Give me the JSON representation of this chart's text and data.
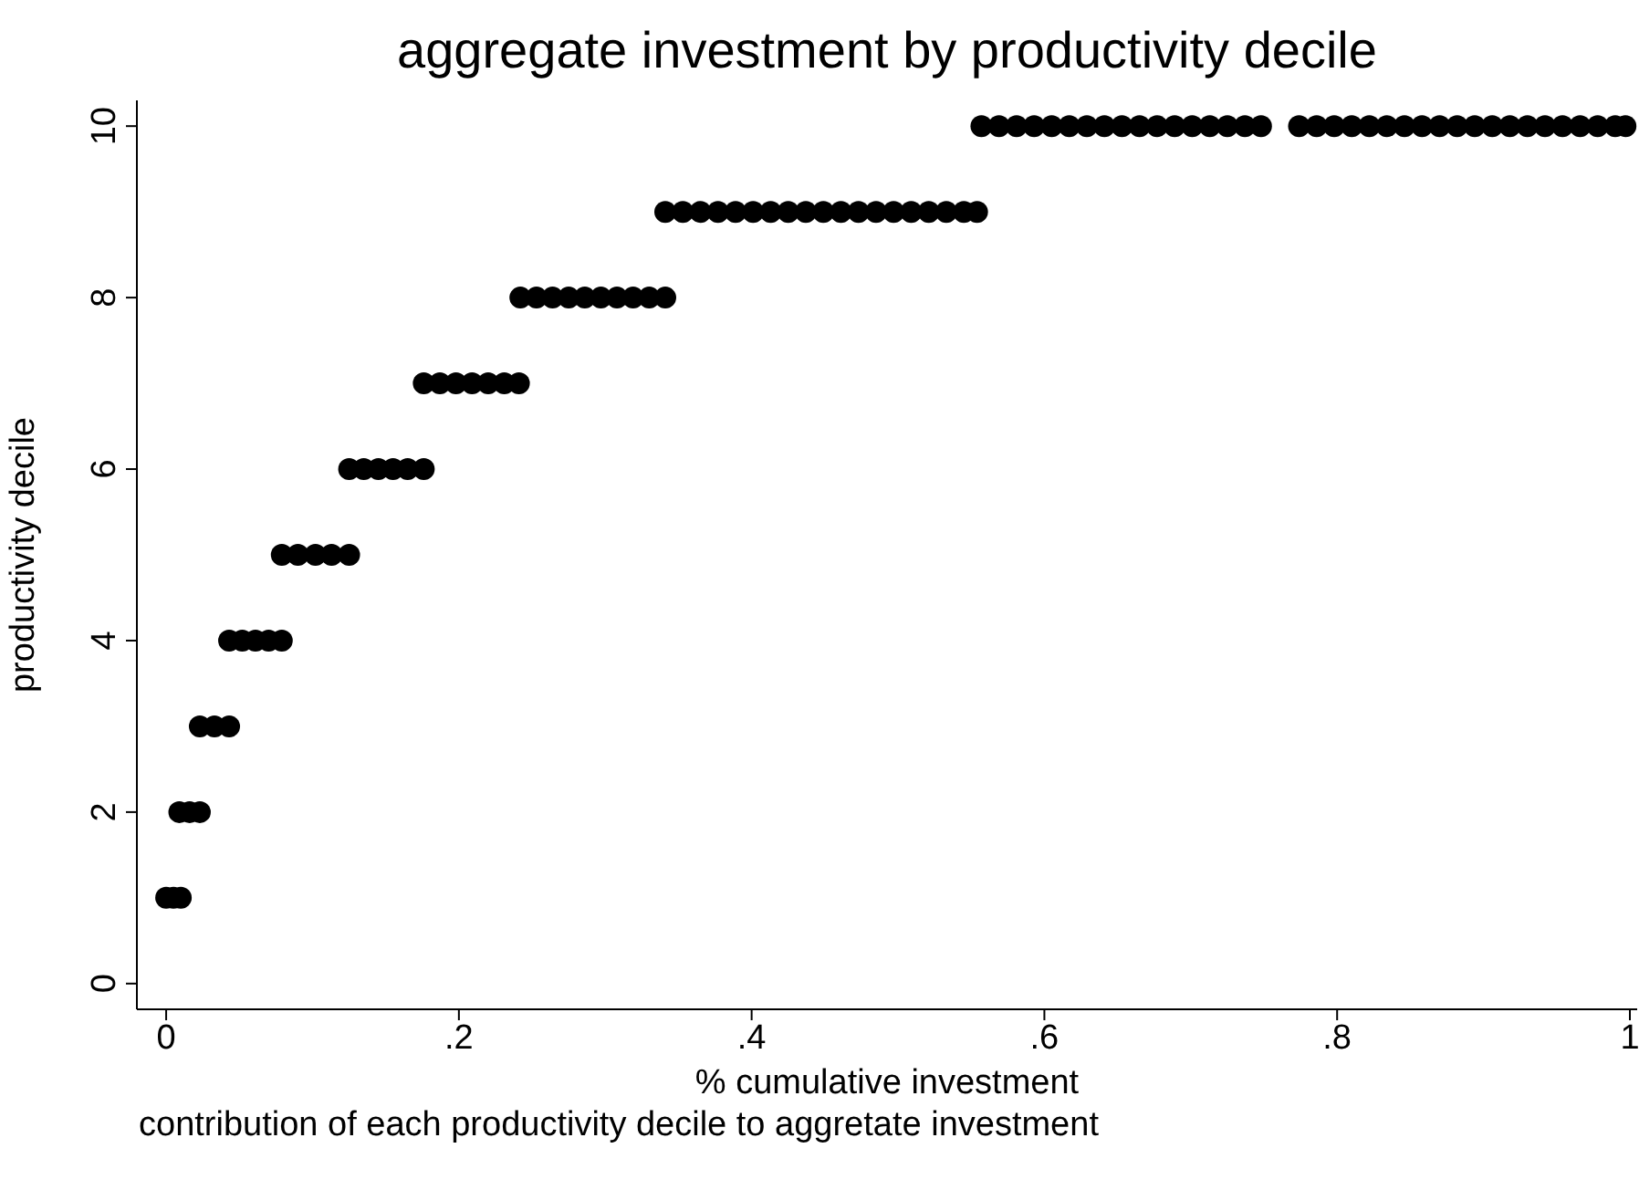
{
  "chart_data": {
    "type": "scatter",
    "title": "aggregate investment by productivity decile",
    "xlabel": "% cumulative investment",
    "ylabel": "productivity decile",
    "annotations": [
      "contribution of each productivity decile to aggretate investment"
    ],
    "series": [
      {
        "color": "#000000",
        "x": [
          0,
          0.005,
          0.01,
          0.009,
          0.016,
          0.023,
          0.023,
          0.033,
          0.043,
          0.043,
          0.052,
          0.061,
          0.07,
          0.079,
          0.079,
          0.09,
          0.102,
          0.113,
          0.125,
          0.125,
          0.135,
          0.145,
          0.155,
          0.165,
          0.176,
          0.176,
          0.187,
          0.198,
          0.209,
          0.22,
          0.231,
          0.241,
          0.242,
          0.253,
          0.264,
          0.275,
          0.286,
          0.297,
          0.308,
          0.319,
          0.33,
          0.341,
          0.341,
          0.353,
          0.365,
          0.377,
          0.389,
          0.401,
          0.413,
          0.425,
          0.437,
          0.449,
          0.461,
          0.473,
          0.485,
          0.497,
          0.509,
          0.521,
          0.533,
          0.545,
          0.554,
          0.557,
          0.569,
          0.581,
          0.593,
          0.605,
          0.617,
          0.629,
          0.641,
          0.653,
          0.665,
          0.677,
          0.689,
          0.701,
          0.713,
          0.725,
          0.737,
          0.748,
          0.774,
          0.786,
          0.798,
          0.81,
          0.822,
          0.834,
          0.846,
          0.858,
          0.87,
          0.882,
          0.894,
          0.906,
          0.918,
          0.93,
          0.942,
          0.954,
          0.966,
          0.978,
          0.99,
          0.997
        ],
        "values": [
          1,
          1,
          1,
          2,
          2,
          2,
          3,
          3,
          3,
          4,
          4,
          4,
          4,
          4,
          5,
          5,
          5,
          5,
          5,
          6,
          6,
          6,
          6,
          6,
          6,
          7,
          7,
          7,
          7,
          7,
          7,
          7,
          8,
          8,
          8,
          8,
          8,
          8,
          8,
          8,
          8,
          8,
          9,
          9,
          9,
          9,
          9,
          9,
          9,
          9,
          9,
          9,
          9,
          9,
          9,
          9,
          9,
          9,
          9,
          9,
          9,
          10,
          10,
          10,
          10,
          10,
          10,
          10,
          10,
          10,
          10,
          10,
          10,
          10,
          10,
          10,
          10,
          10,
          10,
          10,
          10,
          10,
          10,
          10,
          10,
          10,
          10,
          10,
          10,
          10,
          10,
          10,
          10,
          10,
          10,
          10,
          10,
          10
        ]
      }
    ],
    "xlim": [
      -0.02,
      1.005
    ],
    "xticks": [
      0,
      {
        "value": 0.2,
        "label": ".2"
      },
      {
        "value": 0.4,
        "label": ".4"
      },
      {
        "value": 0.6,
        "label": ".6"
      },
      {
        "value": 0.8,
        "label": ".8"
      },
      1
    ],
    "ylim": [
      -0.3,
      10.3
    ],
    "yticks": [
      0,
      2,
      4,
      6,
      8,
      10
    ],
    "grid": false,
    "legend": false,
    "marker": "circle"
  }
}
